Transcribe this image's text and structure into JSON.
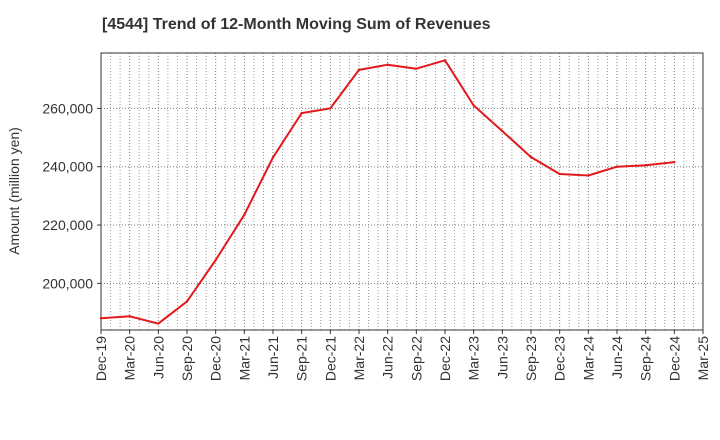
{
  "chart_data": {
    "type": "line",
    "title": "[4544]  Trend of 12-Month Moving Sum of Revenues",
    "xlabel": "",
    "ylabel": "Amount (million yen)",
    "categories": [
      "Dec-19",
      "Mar-20",
      "Jun-20",
      "Sep-20",
      "Dec-20",
      "Mar-21",
      "Jun-21",
      "Sep-21",
      "Dec-21",
      "Mar-22",
      "Jun-22",
      "Sep-22",
      "Dec-22",
      "Mar-23",
      "Jun-23",
      "Sep-23",
      "Dec-23",
      "Mar-24",
      "Jun-24",
      "Sep-24",
      "Dec-24",
      "Mar-25"
    ],
    "series": [
      {
        "color": "#e31a1c",
        "values": [
          188000,
          188700,
          186200,
          193800,
          208000,
          223500,
          243200,
          258400,
          260000,
          273200,
          275000,
          273600,
          276500,
          261000,
          252200,
          243300,
          237500,
          237000,
          240000,
          240500,
          241600,
          null
        ]
      }
    ],
    "ylim": [
      184000,
      279000
    ],
    "yticks": [
      200000,
      220000,
      240000,
      260000
    ],
    "ytick_labels": [
      "200,000",
      "220,000",
      "240,000",
      "260,000"
    ],
    "grid": true,
    "legend": "none"
  }
}
